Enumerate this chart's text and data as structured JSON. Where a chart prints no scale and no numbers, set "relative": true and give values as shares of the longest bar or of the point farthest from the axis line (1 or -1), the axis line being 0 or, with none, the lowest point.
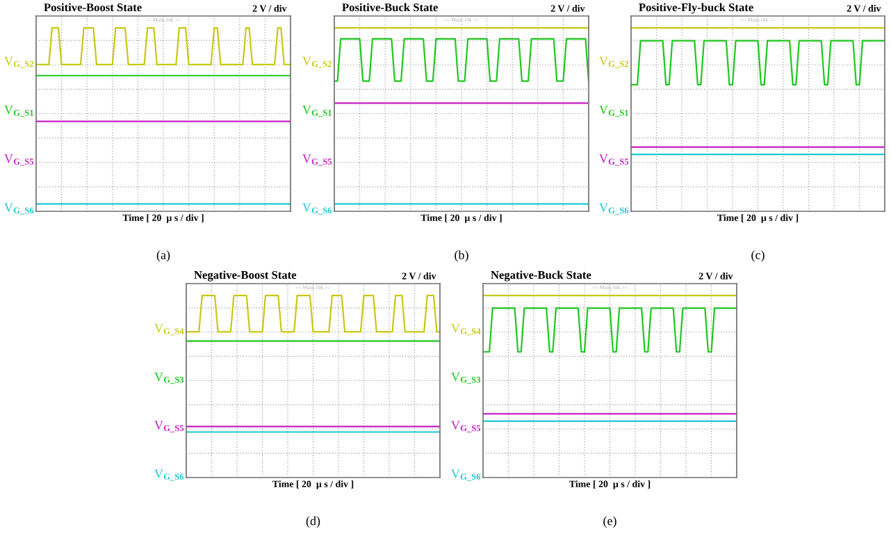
{
  "chart_data": [
    {
      "type": "line",
      "title": "Positive-Boost State",
      "xlabel": "Time [ 20  µ s / div ]",
      "relative": true,
      "grid": true,
      "tick_labels": false,
      "annotations": [
        "2 V / div",
        "<< Main:10k >>",
        "(a)"
      ],
      "categories": [
        null,
        null,
        null,
        null,
        null,
        null,
        null,
        null,
        null,
        null,
        null,
        null,
        null,
        null,
        null,
        null,
        null,
        null,
        null,
        null,
        null,
        null,
        null,
        null,
        null,
        null,
        null,
        null,
        null,
        null,
        null,
        null,
        null,
        null,
        null,
        null,
        null,
        null,
        null,
        null,
        null,
        null,
        null,
        null,
        null,
        null,
        null,
        null,
        null,
        null,
        null,
        null,
        null,
        null,
        null,
        null,
        null,
        null,
        null,
        null,
        null,
        null,
        null,
        null,
        null,
        null,
        null,
        null,
        null,
        null,
        null,
        null,
        null,
        null,
        null,
        null,
        null,
        null,
        null,
        null,
        null
      ],
      "series": [
        {
          "name": "V$_{G_S2}$",
          "color": "#c8c814",
          "values": [
            0.8,
            0.8,
            0.8,
            0.8,
            0.8,
            1,
            1,
            1,
            0.8,
            0.8,
            0.8,
            0.8,
            0.8,
            0.8,
            0.8,
            1,
            1,
            1,
            1,
            0.8,
            0.8,
            0.8,
            0.8,
            0.8,
            0.8,
            1,
            1,
            1,
            1,
            0.8,
            0.8,
            0.8,
            0.8,
            0.8,
            0.8,
            1,
            1,
            1,
            0.8,
            0.8,
            0.8,
            0.8,
            0.8,
            0.8,
            0.8,
            1,
            1,
            1,
            0.8,
            0.8,
            0.8,
            0.8,
            0.8,
            0.8,
            0.8,
            0.8,
            1,
            1,
            0.8,
            0.8,
            0.8,
            0.8,
            0.8,
            0.8,
            0.8,
            0.8,
            1,
            1,
            0.8,
            0.8,
            0.8,
            0.8,
            0.8,
            0.8,
            0.8,
            0.8,
            1,
            1,
            0.8,
            0.8,
            0.8
          ]
        },
        {
          "name": "V$_{G_S1}$",
          "color": "#1ec81e",
          "values": [
            0.74,
            0.74,
            0.74,
            0.74,
            0.74,
            0.74,
            0.74,
            0.74,
            0.74,
            0.74,
            0.74,
            0.74,
            0.74,
            0.74,
            0.74,
            0.74,
            0.74,
            0.74,
            0.74,
            0.74,
            0.74,
            0.74,
            0.74,
            0.74,
            0.74,
            0.74,
            0.74,
            0.74,
            0.74,
            0.74,
            0.74,
            0.74,
            0.74,
            0.74,
            0.74,
            0.74,
            0.74,
            0.74,
            0.74,
            0.74,
            0.74,
            0.74,
            0.74,
            0.74,
            0.74,
            0.74,
            0.74,
            0.74,
            0.74,
            0.74,
            0.74,
            0.74,
            0.74,
            0.74,
            0.74,
            0.74,
            0.74,
            0.74,
            0.74,
            0.74,
            0.74,
            0.74,
            0.74,
            0.74,
            0.74,
            0.74,
            0.74,
            0.74,
            0.74,
            0.74,
            0.74,
            0.74,
            0.74,
            0.74,
            0.74,
            0.74,
            0.74,
            0.74,
            0.74,
            0.74,
            0.74
          ]
        },
        {
          "name": "V$_{G_S5}$",
          "color": "#c81ec8",
          "values": [
            0.49,
            0.49,
            0.49,
            0.49,
            0.49,
            0.49,
            0.49,
            0.49,
            0.49,
            0.49,
            0.49,
            0.49,
            0.49,
            0.49,
            0.49,
            0.49,
            0.49,
            0.49,
            0.49,
            0.49,
            0.49,
            0.49,
            0.49,
            0.49,
            0.49,
            0.49,
            0.49,
            0.49,
            0.49,
            0.49,
            0.49,
            0.49,
            0.49,
            0.49,
            0.49,
            0.49,
            0.49,
            0.49,
            0.49,
            0.49,
            0.49,
            0.49,
            0.49,
            0.49,
            0.49,
            0.49,
            0.49,
            0.49,
            0.49,
            0.49,
            0.49,
            0.49,
            0.49,
            0.49,
            0.49,
            0.49,
            0.49,
            0.49,
            0.49,
            0.49,
            0.49,
            0.49,
            0.49,
            0.49,
            0.49,
            0.49,
            0.49,
            0.49,
            0.49,
            0.49,
            0.49,
            0.49,
            0.49,
            0.49,
            0.49,
            0.49,
            0.49,
            0.49,
            0.49,
            0.49,
            0.49
          ]
        },
        {
          "name": "V$_{G_S6}$",
          "color": "#1ec8d2",
          "values": [
            0.04,
            0.04,
            0.04,
            0.04,
            0.04,
            0.04,
            0.04,
            0.04,
            0.04,
            0.04,
            0.04,
            0.04,
            0.04,
            0.04,
            0.04,
            0.04,
            0.04,
            0.04,
            0.04,
            0.04,
            0.04,
            0.04,
            0.04,
            0.04,
            0.04,
            0.04,
            0.04,
            0.04,
            0.04,
            0.04,
            0.04,
            0.04,
            0.04,
            0.04,
            0.04,
            0.04,
            0.04,
            0.04,
            0.04,
            0.04,
            0.04,
            0.04,
            0.04,
            0.04,
            0.04,
            0.04,
            0.04,
            0.04,
            0.04,
            0.04,
            0.04,
            0.04,
            0.04,
            0.04,
            0.04,
            0.04,
            0.04,
            0.04,
            0.04,
            0.04,
            0.04,
            0.04,
            0.04,
            0.04,
            0.04,
            0.04,
            0.04,
            0.04,
            0.04,
            0.04,
            0.04,
            0.04,
            0.04,
            0.04,
            0.04,
            0.04,
            0.04,
            0.04,
            0.04,
            0.04,
            0.04
          ]
        }
      ]
    },
    {
      "type": "line",
      "title": "Positive-Buck State",
      "xlabel": "Time [ 20  µ s / div ]",
      "relative": true,
      "grid": true,
      "tick_labels": false,
      "annotations": [
        "2 V / div",
        "<< Main:10k >>",
        "(b)"
      ],
      "categories": [
        null,
        null,
        null,
        null,
        null,
        null,
        null,
        null,
        null,
        null,
        null,
        null,
        null,
        null,
        null,
        null,
        null,
        null,
        null,
        null,
        null,
        null,
        null,
        null,
        null,
        null,
        null,
        null,
        null,
        null,
        null,
        null,
        null,
        null,
        null,
        null,
        null,
        null,
        null,
        null,
        null,
        null,
        null,
        null,
        null,
        null,
        null,
        null,
        null,
        null,
        null,
        null,
        null,
        null,
        null,
        null,
        null,
        null,
        null,
        null,
        null,
        null,
        null,
        null,
        null,
        null,
        null,
        null,
        null,
        null,
        null,
        null,
        null,
        null,
        null,
        null,
        null,
        null,
        null,
        null,
        null
      ],
      "series": [
        {
          "name": "V$_{G_S2}$",
          "color": "#c8c814",
          "values": [
            1,
            1,
            1,
            1,
            1,
            1,
            1,
            1,
            1,
            1,
            1,
            1,
            1,
            1,
            1,
            1,
            1,
            1,
            1,
            1,
            1,
            1,
            1,
            1,
            1,
            1,
            1,
            1,
            1,
            1,
            1,
            1,
            1,
            1,
            1,
            1,
            1,
            1,
            1,
            1,
            1,
            1,
            1,
            1,
            1,
            1,
            1,
            1,
            1,
            1,
            1,
            1,
            1,
            1,
            1,
            1,
            1,
            1,
            1,
            1,
            1,
            1,
            1,
            1,
            1,
            1,
            1,
            1,
            1,
            1,
            1,
            1,
            1,
            1,
            1,
            1,
            1,
            1,
            1,
            1,
            1
          ]
        },
        {
          "name": "V$_{G_S1}$",
          "color": "#1ec81e",
          "values": [
            0.71,
            0.71,
            0.94,
            0.94,
            0.94,
            0.94,
            0.94,
            0.94,
            0.94,
            0.71,
            0.71,
            0.71,
            0.94,
            0.94,
            0.94,
            0.94,
            0.94,
            0.94,
            0.94,
            0.71,
            0.71,
            0.71,
            0.94,
            0.94,
            0.94,
            0.94,
            0.94,
            0.94,
            0.94,
            0.71,
            0.71,
            0.71,
            0.94,
            0.94,
            0.94,
            0.94,
            0.94,
            0.94,
            0.94,
            0.71,
            0.71,
            0.71,
            0.94,
            0.94,
            0.94,
            0.94,
            0.94,
            0.94,
            0.94,
            0.71,
            0.71,
            0.71,
            0.94,
            0.94,
            0.94,
            0.94,
            0.94,
            0.94,
            0.94,
            0.71,
            0.71,
            0.71,
            0.94,
            0.94,
            0.94,
            0.94,
            0.94,
            0.94,
            0.94,
            0.94,
            0.71,
            0.71,
            0.71,
            0.94,
            0.94,
            0.94,
            0.94,
            0.94,
            0.94,
            0.94,
            0.71
          ]
        },
        {
          "name": "V$_{G_S5}$",
          "color": "#c81ec8",
          "values": [
            0.59,
            0.59,
            0.59,
            0.59,
            0.59,
            0.59,
            0.59,
            0.59,
            0.59,
            0.59,
            0.59,
            0.59,
            0.59,
            0.59,
            0.59,
            0.59,
            0.59,
            0.59,
            0.59,
            0.59,
            0.59,
            0.59,
            0.59,
            0.59,
            0.59,
            0.59,
            0.59,
            0.59,
            0.59,
            0.59,
            0.59,
            0.59,
            0.59,
            0.59,
            0.59,
            0.59,
            0.59,
            0.59,
            0.59,
            0.59,
            0.59,
            0.59,
            0.59,
            0.59,
            0.59,
            0.59,
            0.59,
            0.59,
            0.59,
            0.59,
            0.59,
            0.59,
            0.59,
            0.59,
            0.59,
            0.59,
            0.59,
            0.59,
            0.59,
            0.59,
            0.59,
            0.59,
            0.59,
            0.59,
            0.59,
            0.59,
            0.59,
            0.59,
            0.59,
            0.59,
            0.59,
            0.59,
            0.59,
            0.59,
            0.59,
            0.59,
            0.59,
            0.59,
            0.59,
            0.59,
            0.59
          ]
        },
        {
          "name": "V$_{G_S6}$",
          "color": "#1ec8d2",
          "values": [
            0.04,
            0.04,
            0.04,
            0.04,
            0.04,
            0.04,
            0.04,
            0.04,
            0.04,
            0.04,
            0.04,
            0.04,
            0.04,
            0.04,
            0.04,
            0.04,
            0.04,
            0.04,
            0.04,
            0.04,
            0.04,
            0.04,
            0.04,
            0.04,
            0.04,
            0.04,
            0.04,
            0.04,
            0.04,
            0.04,
            0.04,
            0.04,
            0.04,
            0.04,
            0.04,
            0.04,
            0.04,
            0.04,
            0.04,
            0.04,
            0.04,
            0.04,
            0.04,
            0.04,
            0.04,
            0.04,
            0.04,
            0.04,
            0.04,
            0.04,
            0.04,
            0.04,
            0.04,
            0.04,
            0.04,
            0.04,
            0.04,
            0.04,
            0.04,
            0.04,
            0.04,
            0.04,
            0.04,
            0.04,
            0.04,
            0.04,
            0.04,
            0.04,
            0.04,
            0.04,
            0.04,
            0.04,
            0.04,
            0.04,
            0.04,
            0.04,
            0.04,
            0.04,
            0.04,
            0.04,
            0.04
          ]
        }
      ]
    },
    {
      "type": "line",
      "title": "Positive-Fly-buck State",
      "xlabel": "Time [ 20  µ s / div ]",
      "relative": true,
      "grid": true,
      "tick_labels": false,
      "annotations": [
        "2 V / div",
        "<< Main:10k >>",
        "(c)"
      ],
      "categories": [
        null,
        null,
        null,
        null,
        null,
        null,
        null,
        null,
        null,
        null,
        null,
        null,
        null,
        null,
        null,
        null,
        null,
        null,
        null,
        null,
        null,
        null,
        null,
        null,
        null,
        null,
        null,
        null,
        null,
        null,
        null,
        null,
        null,
        null,
        null,
        null,
        null,
        null,
        null,
        null,
        null,
        null,
        null,
        null,
        null,
        null,
        null,
        null,
        null,
        null,
        null,
        null,
        null,
        null,
        null,
        null,
        null,
        null,
        null,
        null,
        null,
        null,
        null,
        null,
        null,
        null,
        null,
        null,
        null,
        null,
        null,
        null,
        null,
        null,
        null,
        null,
        null,
        null,
        null,
        null,
        null
      ],
      "series": [
        {
          "name": "V$_{G_S2}$",
          "color": "#c8c814",
          "values": [
            1,
            1,
            1,
            1,
            1,
            1,
            1,
            1,
            1,
            1,
            1,
            1,
            1,
            1,
            1,
            1,
            1,
            1,
            1,
            1,
            1,
            1,
            1,
            1,
            1,
            1,
            1,
            1,
            1,
            1,
            1,
            1,
            1,
            1,
            1,
            1,
            1,
            1,
            1,
            1,
            1,
            1,
            1,
            1,
            1,
            1,
            1,
            1,
            1,
            1,
            1,
            1,
            1,
            1,
            1,
            1,
            1,
            1,
            1,
            1,
            1,
            1,
            1,
            1,
            1,
            1,
            1,
            1,
            1,
            1,
            1,
            1,
            1,
            1,
            1,
            1,
            1,
            1,
            1,
            1,
            1
          ]
        },
        {
          "name": "V$_{G_S1}$",
          "color": "#1ec81e",
          "values": [
            0.69,
            0.69,
            0.69,
            0.93,
            0.93,
            0.93,
            0.93,
            0.93,
            0.93,
            0.93,
            0.93,
            0.69,
            0.69,
            0.93,
            0.93,
            0.93,
            0.93,
            0.93,
            0.93,
            0.93,
            0.93,
            0.69,
            0.69,
            0.93,
            0.93,
            0.93,
            0.93,
            0.93,
            0.93,
            0.93,
            0.93,
            0.69,
            0.69,
            0.93,
            0.93,
            0.93,
            0.93,
            0.93,
            0.93,
            0.93,
            0.93,
            0.69,
            0.69,
            0.93,
            0.93,
            0.93,
            0.93,
            0.93,
            0.93,
            0.93,
            0.93,
            0.69,
            0.69,
            0.93,
            0.93,
            0.93,
            0.93,
            0.93,
            0.93,
            0.93,
            0.93,
            0.69,
            0.69,
            0.93,
            0.93,
            0.93,
            0.93,
            0.93,
            0.93,
            0.93,
            0.93,
            0.69,
            0.69,
            0.93,
            0.93,
            0.93,
            0.93,
            0.93,
            0.93,
            0.93,
            0.93
          ]
        },
        {
          "name": "V$_{G_S5}$",
          "color": "#c81ec8",
          "values": [
            0.35,
            0.35,
            0.35,
            0.35,
            0.35,
            0.35,
            0.35,
            0.35,
            0.35,
            0.35,
            0.35,
            0.35,
            0.35,
            0.35,
            0.35,
            0.35,
            0.35,
            0.35,
            0.35,
            0.35,
            0.35,
            0.35,
            0.35,
            0.35,
            0.35,
            0.35,
            0.35,
            0.35,
            0.35,
            0.35,
            0.35,
            0.35,
            0.35,
            0.35,
            0.35,
            0.35,
            0.35,
            0.35,
            0.35,
            0.35,
            0.35,
            0.35,
            0.35,
            0.35,
            0.35,
            0.35,
            0.35,
            0.35,
            0.35,
            0.35,
            0.35,
            0.35,
            0.35,
            0.35,
            0.35,
            0.35,
            0.35,
            0.35,
            0.35,
            0.35,
            0.35,
            0.35,
            0.35,
            0.35,
            0.35,
            0.35,
            0.35,
            0.35,
            0.35,
            0.35,
            0.35,
            0.35,
            0.35,
            0.35,
            0.35,
            0.35,
            0.35,
            0.35,
            0.35,
            0.35,
            0.35
          ]
        },
        {
          "name": "V$_{G_S6}$",
          "color": "#1ec8d2",
          "values": [
            0.31,
            0.31,
            0.31,
            0.31,
            0.31,
            0.31,
            0.31,
            0.31,
            0.31,
            0.31,
            0.31,
            0.31,
            0.31,
            0.31,
            0.31,
            0.31,
            0.31,
            0.31,
            0.31,
            0.31,
            0.31,
            0.31,
            0.31,
            0.31,
            0.31,
            0.31,
            0.31,
            0.31,
            0.31,
            0.31,
            0.31,
            0.31,
            0.31,
            0.31,
            0.31,
            0.31,
            0.31,
            0.31,
            0.31,
            0.31,
            0.31,
            0.31,
            0.31,
            0.31,
            0.31,
            0.31,
            0.31,
            0.31,
            0.31,
            0.31,
            0.31,
            0.31,
            0.31,
            0.31,
            0.31,
            0.31,
            0.31,
            0.31,
            0.31,
            0.31,
            0.31,
            0.31,
            0.31,
            0.31,
            0.31,
            0.31,
            0.31,
            0.31,
            0.31,
            0.31,
            0.31,
            0.31,
            0.31,
            0.31,
            0.31,
            0.31,
            0.31,
            0.31,
            0.31,
            0.31,
            0.31
          ]
        }
      ]
    },
    {
      "type": "line",
      "title": "Negative-Boost State",
      "xlabel": "Time [ 20  µ s / div ]",
      "relative": true,
      "grid": true,
      "tick_labels": false,
      "annotations": [
        "2 V / div",
        "<< Main:10k >>",
        "(d)"
      ],
      "categories": [
        null,
        null,
        null,
        null,
        null,
        null,
        null,
        null,
        null,
        null,
        null,
        null,
        null,
        null,
        null,
        null,
        null,
        null,
        null,
        null,
        null,
        null,
        null,
        null,
        null,
        null,
        null,
        null,
        null,
        null,
        null,
        null,
        null,
        null,
        null,
        null,
        null,
        null,
        null,
        null,
        null,
        null,
        null,
        null,
        null,
        null,
        null,
        null,
        null,
        null,
        null,
        null,
        null,
        null,
        null,
        null,
        null,
        null,
        null,
        null,
        null,
        null,
        null,
        null,
        null,
        null,
        null,
        null,
        null,
        null,
        null,
        null,
        null,
        null,
        null,
        null,
        null,
        null,
        null,
        null,
        null
      ],
      "series": [
        {
          "name": "V$_{G_S4}$",
          "color": "#c8c814",
          "values": [
            0.8,
            0.8,
            0.8,
            0.8,
            0.8,
            1,
            1,
            1,
            1,
            1,
            0.8,
            0.8,
            0.8,
            0.8,
            0.8,
            1,
            1,
            1,
            1,
            1,
            0.8,
            0.8,
            0.8,
            0.8,
            0.8,
            1,
            1,
            1,
            1,
            1,
            0.8,
            0.8,
            0.8,
            0.8,
            0.8,
            1,
            1,
            1,
            1,
            1,
            0.8,
            0.8,
            0.8,
            0.8,
            0.8,
            0.8,
            1,
            1,
            1,
            1,
            0.8,
            0.8,
            0.8,
            0.8,
            0.8,
            0.8,
            1,
            1,
            1,
            1,
            0.8,
            0.8,
            0.8,
            0.8,
            0.8,
            0.8,
            1,
            1,
            1,
            0.8,
            0.8,
            0.8,
            0.8,
            0.8,
            0.8,
            0.8,
            1,
            1,
            1,
            0.8,
            0.8
          ]
        },
        {
          "name": "V$_{G_S3}$",
          "color": "#1ec81e",
          "values": [
            0.75,
            0.75,
            0.75,
            0.75,
            0.75,
            0.75,
            0.75,
            0.75,
            0.75,
            0.75,
            0.75,
            0.75,
            0.75,
            0.75,
            0.75,
            0.75,
            0.75,
            0.75,
            0.75,
            0.75,
            0.75,
            0.75,
            0.75,
            0.75,
            0.75,
            0.75,
            0.75,
            0.75,
            0.75,
            0.75,
            0.75,
            0.75,
            0.75,
            0.75,
            0.75,
            0.75,
            0.75,
            0.75,
            0.75,
            0.75,
            0.75,
            0.75,
            0.75,
            0.75,
            0.75,
            0.75,
            0.75,
            0.75,
            0.75,
            0.75,
            0.75,
            0.75,
            0.75,
            0.75,
            0.75,
            0.75,
            0.75,
            0.75,
            0.75,
            0.75,
            0.75,
            0.75,
            0.75,
            0.75,
            0.75,
            0.75,
            0.75,
            0.75,
            0.75,
            0.75,
            0.75,
            0.75,
            0.75,
            0.75,
            0.75,
            0.75,
            0.75,
            0.75,
            0.75,
            0.75,
            0.75
          ]
        },
        {
          "name": "V$_{G_S5}$",
          "color": "#c81ec8",
          "values": [
            0.28,
            0.28,
            0.28,
            0.28,
            0.28,
            0.28,
            0.28,
            0.28,
            0.28,
            0.28,
            0.28,
            0.28,
            0.28,
            0.28,
            0.28,
            0.28,
            0.28,
            0.28,
            0.28,
            0.28,
            0.28,
            0.28,
            0.28,
            0.28,
            0.28,
            0.28,
            0.28,
            0.28,
            0.28,
            0.28,
            0.28,
            0.28,
            0.28,
            0.28,
            0.28,
            0.28,
            0.28,
            0.28,
            0.28,
            0.28,
            0.28,
            0.28,
            0.28,
            0.28,
            0.28,
            0.28,
            0.28,
            0.28,
            0.28,
            0.28,
            0.28,
            0.28,
            0.28,
            0.28,
            0.28,
            0.28,
            0.28,
            0.28,
            0.28,
            0.28,
            0.28,
            0.28,
            0.28,
            0.28,
            0.28,
            0.28,
            0.28,
            0.28,
            0.28,
            0.28,
            0.28,
            0.28,
            0.28,
            0.28,
            0.28,
            0.28,
            0.28,
            0.28,
            0.28,
            0.28,
            0.28
          ]
        },
        {
          "name": "V$_{G_S6}$",
          "color": "#1ec8d2",
          "values": [
            0.25,
            0.25,
            0.25,
            0.25,
            0.25,
            0.25,
            0.25,
            0.25,
            0.25,
            0.25,
            0.25,
            0.25,
            0.25,
            0.25,
            0.25,
            0.25,
            0.25,
            0.25,
            0.25,
            0.25,
            0.25,
            0.25,
            0.25,
            0.25,
            0.25,
            0.25,
            0.25,
            0.25,
            0.25,
            0.25,
            0.25,
            0.25,
            0.25,
            0.25,
            0.25,
            0.25,
            0.25,
            0.25,
            0.25,
            0.25,
            0.25,
            0.25,
            0.25,
            0.25,
            0.25,
            0.25,
            0.25,
            0.25,
            0.25,
            0.25,
            0.25,
            0.25,
            0.25,
            0.25,
            0.25,
            0.25,
            0.25,
            0.25,
            0.25,
            0.25,
            0.25,
            0.25,
            0.25,
            0.25,
            0.25,
            0.25,
            0.25,
            0.25,
            0.25,
            0.25,
            0.25,
            0.25,
            0.25,
            0.25,
            0.25,
            0.25,
            0.25,
            0.25,
            0.25,
            0.25,
            0.25
          ]
        }
      ]
    },
    {
      "type": "line",
      "title": "Negative-Buck State",
      "xlabel": "Time [ 20  µ s / div ]",
      "relative": true,
      "grid": true,
      "tick_labels": false,
      "annotations": [
        "2 V / div",
        "<< Main:10k >>",
        "(e)"
      ],
      "categories": [
        null,
        null,
        null,
        null,
        null,
        null,
        null,
        null,
        null,
        null,
        null,
        null,
        null,
        null,
        null,
        null,
        null,
        null,
        null,
        null,
        null,
        null,
        null,
        null,
        null,
        null,
        null,
        null,
        null,
        null,
        null,
        null,
        null,
        null,
        null,
        null,
        null,
        null,
        null,
        null,
        null,
        null,
        null,
        null,
        null,
        null,
        null,
        null,
        null,
        null,
        null,
        null,
        null,
        null,
        null,
        null,
        null,
        null,
        null,
        null,
        null,
        null,
        null,
        null,
        null,
        null,
        null,
        null,
        null,
        null,
        null,
        null,
        null,
        null,
        null,
        null,
        null,
        null,
        null,
        null,
        null
      ],
      "series": [
        {
          "name": "V$_{G_S4}$",
          "color": "#c8c814",
          "values": [
            1,
            1,
            1,
            1,
            1,
            1,
            1,
            1,
            1,
            1,
            1,
            1,
            1,
            1,
            1,
            1,
            1,
            1,
            1,
            1,
            1,
            1,
            1,
            1,
            1,
            1,
            1,
            1,
            1,
            1,
            1,
            1,
            1,
            1,
            1,
            1,
            1,
            1,
            1,
            1,
            1,
            1,
            1,
            1,
            1,
            1,
            1,
            1,
            1,
            1,
            1,
            1,
            1,
            1,
            1,
            1,
            1,
            1,
            1,
            1,
            1,
            1,
            1,
            1,
            1,
            1,
            1,
            1,
            1,
            1,
            1,
            1,
            1,
            1,
            1,
            1,
            1,
            1,
            1,
            1,
            1
          ]
        },
        {
          "name": "V$_{G_S3}$",
          "color": "#1ec81e",
          "values": [
            0.69,
            0.69,
            0.69,
            0.93,
            0.93,
            0.93,
            0.93,
            0.93,
            0.93,
            0.93,
            0.93,
            0.69,
            0.69,
            0.93,
            0.93,
            0.93,
            0.93,
            0.93,
            0.93,
            0.93,
            0.93,
            0.69,
            0.69,
            0.93,
            0.93,
            0.93,
            0.93,
            0.93,
            0.93,
            0.93,
            0.93,
            0.69,
            0.69,
            0.93,
            0.93,
            0.93,
            0.93,
            0.93,
            0.93,
            0.93,
            0.93,
            0.69,
            0.69,
            0.93,
            0.93,
            0.93,
            0.93,
            0.93,
            0.93,
            0.93,
            0.93,
            0.69,
            0.69,
            0.93,
            0.93,
            0.93,
            0.93,
            0.93,
            0.93,
            0.93,
            0.93,
            0.69,
            0.69,
            0.93,
            0.93,
            0.93,
            0.93,
            0.93,
            0.93,
            0.93,
            0.93,
            0.69,
            0.69,
            0.93,
            0.93,
            0.93,
            0.93,
            0.93,
            0.93,
            0.93,
            0.93
          ]
        },
        {
          "name": "V$_{G_S5}$",
          "color": "#c81ec8",
          "values": [
            0.35,
            0.35,
            0.35,
            0.35,
            0.35,
            0.35,
            0.35,
            0.35,
            0.35,
            0.35,
            0.35,
            0.35,
            0.35,
            0.35,
            0.35,
            0.35,
            0.35,
            0.35,
            0.35,
            0.35,
            0.35,
            0.35,
            0.35,
            0.35,
            0.35,
            0.35,
            0.35,
            0.35,
            0.35,
            0.35,
            0.35,
            0.35,
            0.35,
            0.35,
            0.35,
            0.35,
            0.35,
            0.35,
            0.35,
            0.35,
            0.35,
            0.35,
            0.35,
            0.35,
            0.35,
            0.35,
            0.35,
            0.35,
            0.35,
            0.35,
            0.35,
            0.35,
            0.35,
            0.35,
            0.35,
            0.35,
            0.35,
            0.35,
            0.35,
            0.35,
            0.35,
            0.35,
            0.35,
            0.35,
            0.35,
            0.35,
            0.35,
            0.35,
            0.35,
            0.35,
            0.35,
            0.35,
            0.35,
            0.35,
            0.35,
            0.35,
            0.35,
            0.35,
            0.35,
            0.35,
            0.35
          ]
        },
        {
          "name": "V$_{G_S6}$",
          "color": "#1ec8d2",
          "values": [
            0.31,
            0.31,
            0.31,
            0.31,
            0.31,
            0.31,
            0.31,
            0.31,
            0.31,
            0.31,
            0.31,
            0.31,
            0.31,
            0.31,
            0.31,
            0.31,
            0.31,
            0.31,
            0.31,
            0.31,
            0.31,
            0.31,
            0.31,
            0.31,
            0.31,
            0.31,
            0.31,
            0.31,
            0.31,
            0.31,
            0.31,
            0.31,
            0.31,
            0.31,
            0.31,
            0.31,
            0.31,
            0.31,
            0.31,
            0.31,
            0.31,
            0.31,
            0.31,
            0.31,
            0.31,
            0.31,
            0.31,
            0.31,
            0.31,
            0.31,
            0.31,
            0.31,
            0.31,
            0.31,
            0.31,
            0.31,
            0.31,
            0.31,
            0.31,
            0.31,
            0.31,
            0.31,
            0.31,
            0.31,
            0.31,
            0.31,
            0.31,
            0.31,
            0.31,
            0.31,
            0.31,
            0.31,
            0.31,
            0.31,
            0.31,
            0.31,
            0.31,
            0.31,
            0.31,
            0.31,
            0.31
          ]
        }
      ]
    }
  ]
}
